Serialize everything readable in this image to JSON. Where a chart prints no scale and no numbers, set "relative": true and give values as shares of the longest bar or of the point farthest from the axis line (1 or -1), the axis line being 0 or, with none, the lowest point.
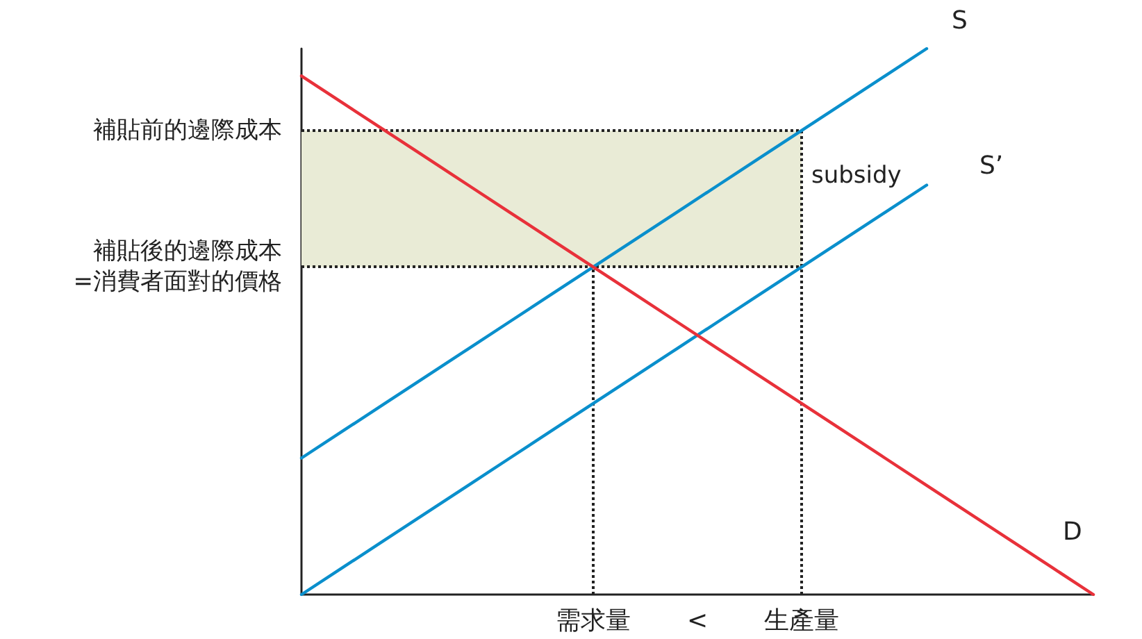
{
  "chart_data": {
    "type": "line",
    "relative": true,
    "categories": [
      null,
      null,
      null,
      null,
      null,
      null,
      null,
      "需求量",
      null,
      null,
      null,
      null,
      "生產量",
      null,
      null,
      null,
      null,
      null,
      null,
      null
    ],
    "series": [
      {
        "name": "S",
        "color": "#0a8fcc",
        "values": [
          0.25,
          0.3,
          0.35,
          0.4,
          0.45,
          0.5,
          0.55,
          0.6,
          0.65,
          0.7,
          0.75,
          0.8,
          0.85,
          0.9,
          0.95,
          1.0,
          null,
          null,
          null,
          null
        ]
      },
      {
        "name": "S’",
        "color": "#0a8fcc",
        "values": [
          0,
          0.05,
          0.1,
          0.15,
          0.2,
          0.25,
          0.3,
          0.35,
          0.4,
          0.45,
          0.5,
          0.55,
          0.6,
          0.65,
          0.7,
          0.75,
          null,
          null,
          null,
          null
        ]
      },
      {
        "name": "D",
        "color": "#e8313a",
        "values": [
          0.95,
          0.9,
          0.85,
          0.8,
          0.75,
          0.7,
          0.65,
          0.6,
          0.55,
          0.5,
          0.45,
          0.4,
          0.35,
          0.3,
          0.25,
          0.2,
          0.15,
          0.1,
          0.05,
          0
        ]
      }
    ],
    "ref_lines": [
      {
        "axis": "y",
        "value": 0.85,
        "label": "補貼前的邊際成本",
        "color": "#222222",
        "line_style": "dotted"
      },
      {
        "axis": "y",
        "value": 0.6,
        "label": "補貼後的邊際成本\n=消費者面對的價格",
        "color": "#222222",
        "line_style": "dotted"
      },
      {
        "axis": "x",
        "value": "需求量",
        "color": "#222222",
        "line_style": "dotted"
      },
      {
        "axis": "x",
        "value": "生產量",
        "color": "#222222",
        "line_style": "dotted"
      }
    ],
    "bands": [
      {
        "axis": "y",
        "from": 0.6,
        "to": 0.85,
        "color": "#e9ebd6"
      }
    ],
    "annotations": [
      "subsidy",
      "<"
    ],
    "grid": false,
    "legend": false,
    "marker": "none",
    "line_style": "solid"
  }
}
